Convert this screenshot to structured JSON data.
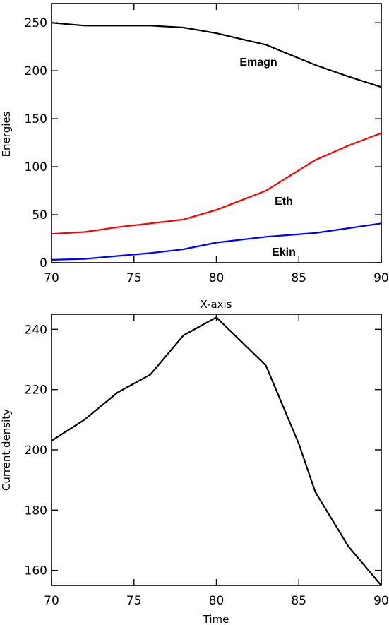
{
  "chart_data": [
    {
      "type": "line",
      "title": "",
      "xlabel": "X-axis",
      "ylabel": "Energies",
      "xlim": [
        70,
        90
      ],
      "ylim": [
        0,
        270
      ],
      "xticks": [
        70,
        75,
        80,
        85,
        90
      ],
      "yticks": [
        0,
        50,
        100,
        150,
        200,
        250
      ],
      "grid": false,
      "legend": "none",
      "series": [
        {
          "name": "Emagn",
          "color": "#000000",
          "x": [
            70,
            72,
            76,
            78,
            80,
            83,
            86,
            88,
            90
          ],
          "y": [
            250,
            247,
            247,
            245,
            239,
            227,
            206,
            194,
            183
          ]
        },
        {
          "name": "Eth",
          "color": "#ff0000",
          "x": [
            70,
            72,
            74,
            76,
            78,
            80,
            83,
            86,
            88,
            90
          ],
          "y": [
            30,
            32,
            37,
            41,
            45,
            55,
            75,
            107,
            122,
            135
          ]
        },
        {
          "name": "Ekin",
          "color": "#0000ff",
          "x": [
            70,
            72,
            74,
            76,
            78,
            80,
            83,
            86,
            88,
            90
          ],
          "y": [
            3,
            4,
            7,
            10,
            14,
            21,
            27,
            31,
            36,
            41
          ]
        }
      ]
    },
    {
      "type": "line",
      "title": "",
      "xlabel": "Time",
      "ylabel": "Current density",
      "xlim": [
        70,
        90
      ],
      "ylim": [
        155,
        245
      ],
      "xticks": [
        70,
        75,
        80,
        85,
        90
      ],
      "yticks": [
        160,
        180,
        200,
        220,
        240
      ],
      "grid": false,
      "legend": "none",
      "series": [
        {
          "color": "#000000",
          "x": [
            70,
            72,
            74,
            76,
            78,
            80,
            83,
            84,
            85,
            86,
            88,
            90
          ],
          "y": [
            203,
            210,
            219,
            225,
            238,
            244,
            228,
            215,
            202,
            186,
            168,
            155
          ]
        }
      ]
    }
  ]
}
